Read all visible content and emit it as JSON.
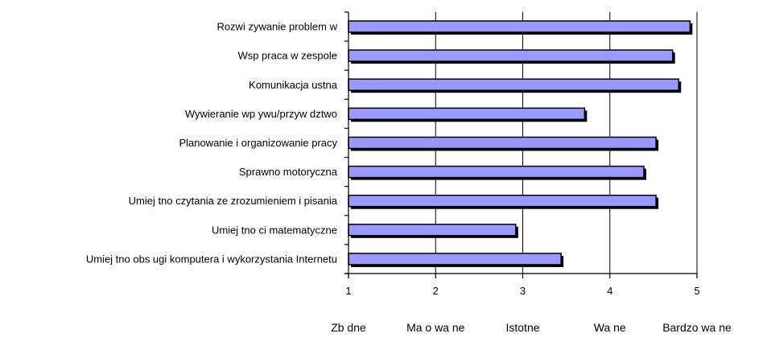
{
  "chart_data": {
    "type": "bar",
    "orientation": "horizontal",
    "categories": [
      "Rozwi  zywanie problem  w",
      "Wsp   praca w zespole",
      "Komunikacja ustna",
      "Wywieranie wp ywu/przyw  dztwo",
      "Planowanie i organizowanie pracy",
      "Sprawno     motoryczna",
      "Umiej  tno     czytania ze zrozumieniem i pisania",
      "Umiej  tno  ci matematyczne",
      "Umiej  tno     obs ugi komputera i wykorzystania Internetu"
    ],
    "values": [
      4.92,
      4.72,
      4.79,
      3.71,
      4.53,
      4.39,
      4.53,
      2.92,
      3.44
    ],
    "xlim": [
      1,
      5
    ],
    "xticks": [
      "1",
      "2",
      "3",
      "4",
      "5"
    ],
    "scale_labels": [
      "Zb  dne",
      "Ma o wa  ne",
      "Istotne",
      "Wa  ne",
      "Bardzo wa  ne"
    ],
    "grid": true,
    "bar_color": "#9999ff",
    "title": "",
    "xlabel": "",
    "ylabel": ""
  }
}
